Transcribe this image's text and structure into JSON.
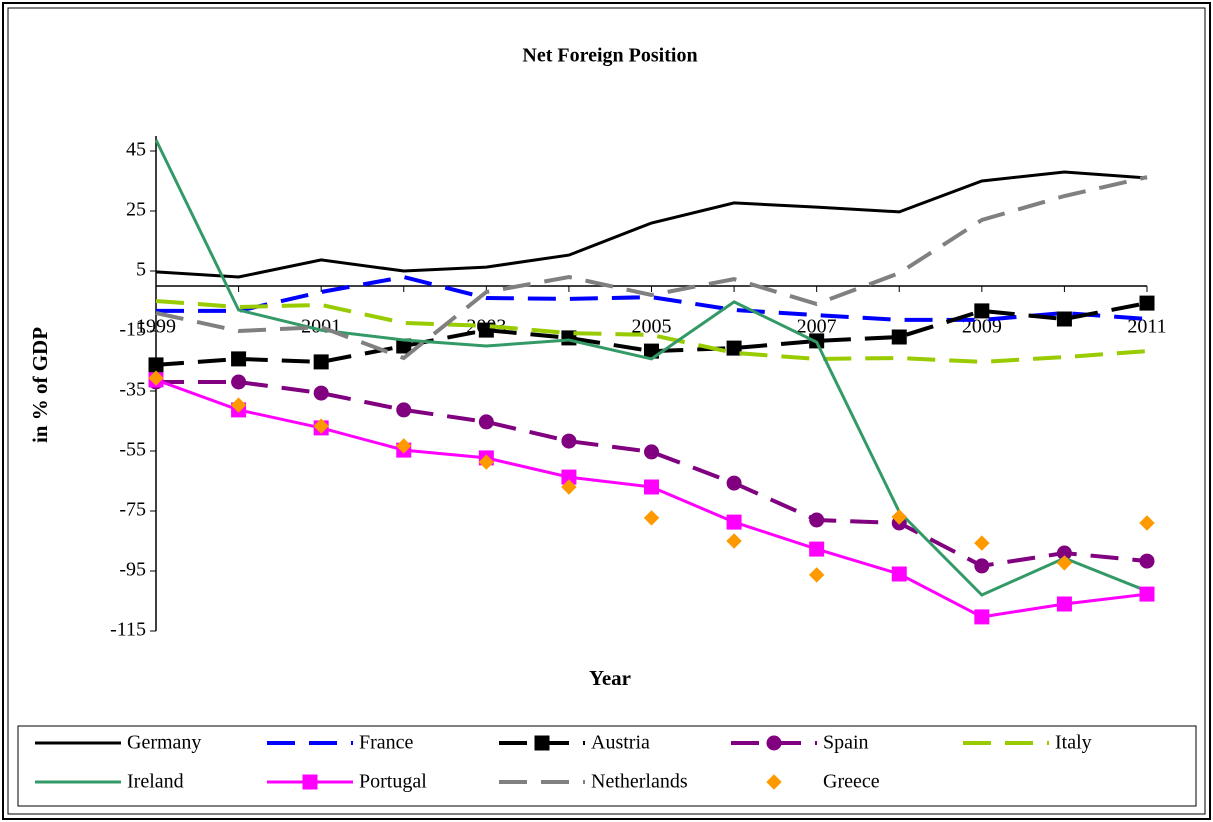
{
  "chart_data": {
    "type": "line",
    "title": "Net Foreign Position",
    "x_label": "Year",
    "y_label": "in % of GDP",
    "categories": [
      "1999",
      null,
      "2001",
      null,
      "2003",
      null,
      "2005",
      null,
      "2007",
      null,
      "2009",
      null,
      "2011"
    ],
    "ylim": [
      -115,
      50
    ],
    "yticks": [
      -115,
      -95,
      -75,
      -55,
      -35,
      -15,
      5,
      25,
      45
    ],
    "legend": "bottom",
    "series": [
      {
        "name": "Germany",
        "color": "#000000",
        "dash": false,
        "marker": null,
        "line": true,
        "values": [
          4.7,
          3,
          8.7,
          5,
          6.3,
          10.3,
          21,
          27.7,
          26.3,
          24.7,
          35,
          38,
          36
        ]
      },
      {
        "name": "France",
        "color": "#0000ff",
        "dash": true,
        "marker": null,
        "line": true,
        "values": [
          -8.3,
          -8.3,
          -2,
          3,
          -4,
          -4.3,
          -3.7,
          -8,
          -9.7,
          -11.3,
          -11.3,
          -9,
          -11
        ]
      },
      {
        "name": "Austria",
        "color": "#000000",
        "dash": true,
        "marker": "square",
        "line": true,
        "values": [
          -26.3,
          -24.3,
          -25.3,
          -20,
          -14.7,
          -17.3,
          -21.7,
          -20.7,
          -18.3,
          -17,
          -8.3,
          -11,
          -5.7
        ]
      },
      {
        "name": "Spain",
        "color": "#800080",
        "dash": true,
        "marker": "circle",
        "line": true,
        "values": [
          -32,
          -32,
          -35.7,
          -41.3,
          -45.3,
          -51.7,
          -55.3,
          -65.7,
          -78,
          -79,
          -93.3,
          -89,
          -91.7
        ]
      },
      {
        "name": "Italy",
        "color": "#99cc00",
        "dash": true,
        "marker": null,
        "line": true,
        "values": [
          -5,
          -7,
          -6.3,
          -12.3,
          -13.3,
          -15.7,
          -16.3,
          -22.3,
          -24.3,
          -24,
          -25.3,
          -23.7,
          -21.7
        ]
      },
      {
        "name": "Ireland",
        "color": "#339966",
        "dash": false,
        "marker": null,
        "line": true,
        "values": [
          48.7,
          -8,
          -14.7,
          -18,
          -20,
          -18,
          -24.3,
          -5.3,
          -18.7,
          -75.3,
          -103,
          -90.7,
          -101.7
        ]
      },
      {
        "name": "Portugal",
        "color": "#ff00ff",
        "dash": false,
        "marker": "square",
        "line": true,
        "values": [
          -31.3,
          -41.3,
          -47.3,
          -54.7,
          -57.3,
          -63.7,
          -67,
          -78.7,
          -87.7,
          -96,
          -110.3,
          -106,
          -102.7
        ]
      },
      {
        "name": "Netherlands",
        "color": "#808080",
        "dash": true,
        "marker": null,
        "line": true,
        "values": [
          -9,
          -15,
          -13.7,
          -24,
          -2,
          3,
          -3,
          2.3,
          -6,
          4.3,
          22,
          30,
          36.3
        ]
      },
      {
        "name": "Greece",
        "color": "#ff9900",
        "dash": false,
        "marker": "diamond",
        "line": false,
        "values": [
          -30.7,
          -39.7,
          -46.7,
          -53.3,
          -58.7,
          -67,
          -77.3,
          -85,
          -96.3,
          -77,
          -85.7,
          -92.3,
          -79
        ]
      }
    ]
  }
}
